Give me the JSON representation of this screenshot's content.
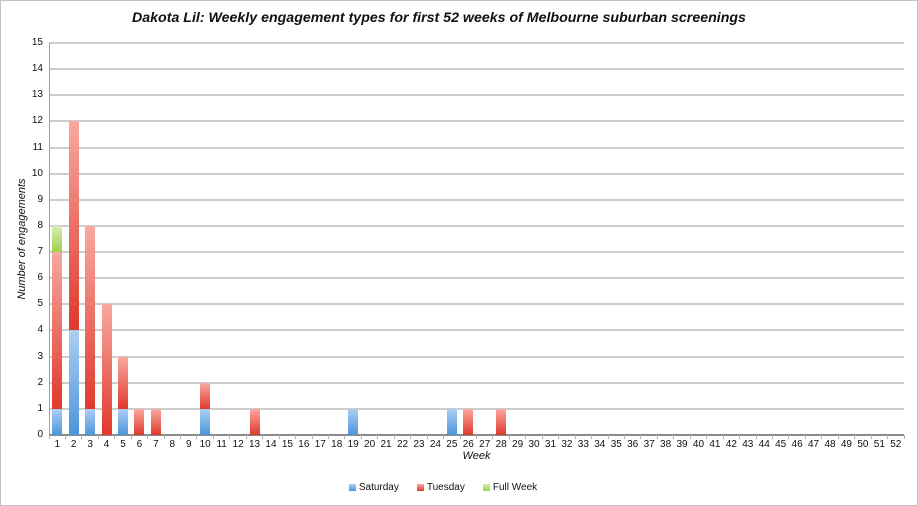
{
  "chart": {
    "title": "Dakota Lil: Weekly engagement types for first 52 weeks of Melbourne suburban screenings",
    "xlabel": "Week",
    "ylabel": "Number of engagements"
  },
  "chart_data": {
    "type": "bar",
    "stacked": true,
    "title": "Dakota Lil: Weekly engagement types for first 52 weeks of Melbourne suburban screenings",
    "xlabel": "Week",
    "ylabel": "Number of engagements",
    "ylim": [
      0,
      15
    ],
    "ytick_step": 1,
    "grid": true,
    "legend_position": "bottom",
    "categories": [
      "1",
      "2",
      "3",
      "4",
      "5",
      "6",
      "7",
      "8",
      "9",
      "10",
      "11",
      "12",
      "13",
      "14",
      "15",
      "16",
      "17",
      "18",
      "19",
      "20",
      "21",
      "22",
      "23",
      "24",
      "25",
      "26",
      "27",
      "28",
      "29",
      "30",
      "31",
      "32",
      "33",
      "34",
      "35",
      "36",
      "37",
      "38",
      "39",
      "40",
      "41",
      "42",
      "43",
      "44",
      "45",
      "46",
      "47",
      "48",
      "49",
      "50",
      "51",
      "52"
    ],
    "series": [
      {
        "name": "Saturday",
        "color_light": "#ABCFF3",
        "color_dark": "#4E95DB",
        "values": [
          1,
          4,
          1,
          0,
          1,
          0,
          0,
          0,
          0,
          1,
          0,
          0,
          0,
          0,
          0,
          0,
          0,
          0,
          1,
          0,
          0,
          0,
          0,
          0,
          1,
          0,
          0,
          0,
          0,
          0,
          0,
          0,
          0,
          0,
          0,
          0,
          0,
          0,
          0,
          0,
          0,
          0,
          0,
          0,
          0,
          0,
          0,
          0,
          0,
          0,
          0,
          0
        ]
      },
      {
        "name": "Tuesday",
        "color_light": "#F8A8A0",
        "color_dark": "#E0392C",
        "values": [
          6,
          8,
          7,
          5,
          2,
          1,
          1,
          0,
          0,
          1,
          0,
          0,
          1,
          0,
          0,
          0,
          0,
          0,
          0,
          0,
          0,
          0,
          0,
          0,
          0,
          1,
          0,
          1,
          0,
          0,
          0,
          0,
          0,
          0,
          0,
          0,
          0,
          0,
          0,
          0,
          0,
          0,
          0,
          0,
          0,
          0,
          0,
          0,
          0,
          0,
          0,
          0
        ]
      },
      {
        "name": "Full Week",
        "color_light": "#D8EFAF",
        "color_dark": "#9ED04E",
        "values": [
          1,
          0,
          0,
          0,
          0,
          0,
          0,
          0,
          0,
          0,
          0,
          0,
          0,
          0,
          0,
          0,
          0,
          0,
          0,
          0,
          0,
          0,
          0,
          0,
          0,
          0,
          0,
          0,
          0,
          0,
          0,
          0,
          0,
          0,
          0,
          0,
          0,
          0,
          0,
          0,
          0,
          0,
          0,
          0,
          0,
          0,
          0,
          0,
          0,
          0,
          0,
          0
        ]
      }
    ]
  }
}
